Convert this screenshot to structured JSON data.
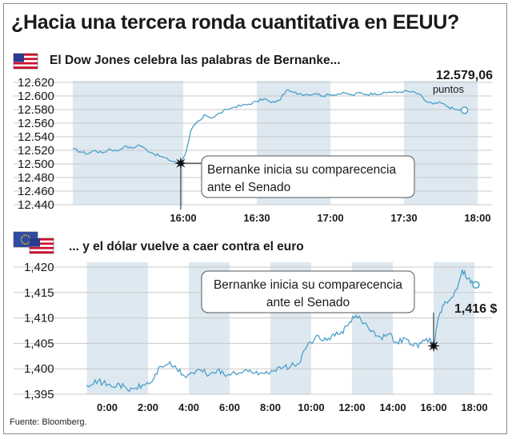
{
  "title": "¿Hacia una tercera ronda cuantitativa en EEUU?",
  "source": "Fuente: Bloomberg.",
  "colors": {
    "line": "#4d9fc9",
    "band": "#dde8f0",
    "grid": "#c9c9c9",
    "text": "#1a1a1a"
  },
  "chart_data": [
    {
      "type": "line",
      "title": "El Dow Jones celebra las palabras de Bernanke...",
      "flag": "us-flag-icon",
      "x_ticks": [
        "16:00",
        "16:30",
        "17:00",
        "17:30",
        "18:00"
      ],
      "y_ticks": [
        "12.620",
        "12.600",
        "12.580",
        "12.560",
        "12.540",
        "12.520",
        "12.500",
        "12.480",
        "12.460",
        "12.440"
      ],
      "ylim": [
        12440,
        12620
      ],
      "x_range": [
        "15:15",
        "18:00"
      ],
      "end_value": "12.579,06",
      "end_unit": "puntos",
      "annotation": {
        "lines": [
          "Bernanke inicia su comparecencia",
          "ante el Senado"
        ],
        "x": "15:59",
        "y": 12501
      },
      "series": [
        {
          "x": [
            15.25,
            15.3,
            15.35,
            15.4,
            15.45,
            15.5,
            15.55,
            15.6,
            15.65,
            15.7,
            15.75,
            15.8,
            15.85,
            15.9,
            15.95,
            15.98,
            16.02,
            16.05,
            16.08,
            16.12,
            16.15,
            16.2,
            16.25,
            16.3,
            16.35,
            16.4,
            16.45,
            16.5,
            16.55,
            16.6,
            16.65,
            16.7,
            16.75,
            16.8,
            16.85,
            16.9,
            16.95,
            17.0,
            17.05,
            17.1,
            17.15,
            17.2,
            17.25,
            17.3,
            17.35,
            17.4,
            17.45,
            17.5,
            17.55,
            17.6,
            17.65,
            17.7,
            17.75,
            17.8,
            17.85,
            17.9
          ],
          "y": [
            12522,
            12518,
            12515,
            12520,
            12516,
            12522,
            12519,
            12526,
            12523,
            12528,
            12521,
            12515,
            12511,
            12506,
            12503,
            12501,
            12518,
            12548,
            12558,
            12565,
            12572,
            12568,
            12575,
            12580,
            12584,
            12586,
            12588,
            12592,
            12596,
            12590,
            12593,
            12608,
            12605,
            12603,
            12602,
            12604,
            12600,
            12602,
            12603,
            12604,
            12601,
            12605,
            12602,
            12604,
            12603,
            12606,
            12605,
            12607,
            12606,
            12603,
            12592,
            12588,
            12590,
            12584,
            12580,
            12579
          ]
        }
      ]
    },
    {
      "type": "line",
      "title": "... y el dólar vuelve a caer contra el euro",
      "flag": "eu-us-flags-icon",
      "x_ticks": [
        "0:00",
        "2:00",
        "4:00",
        "6:00",
        "8:00",
        "10:00",
        "12:00",
        "14:00",
        "16:00",
        "18:00"
      ],
      "y_ticks": [
        "1,420",
        "1,415",
        "1,410",
        "1,405",
        "1,400",
        "1,395"
      ],
      "ylim": [
        1.395,
        1.42
      ],
      "x_range": [
        "23:00",
        "18:00"
      ],
      "end_value": "1,416 $",
      "annotation": {
        "lines": [
          "Bernanke inicia su comparecencia",
          "ante el Senado"
        ],
        "x": "16:00",
        "y": 1.4045
      },
      "series": [
        {
          "x": [
            -1.0,
            -0.6,
            -0.2,
            0.2,
            0.6,
            1.0,
            1.4,
            1.8,
            2.2,
            2.6,
            3.0,
            3.4,
            3.8,
            4.2,
            4.6,
            5.0,
            5.4,
            5.8,
            6.2,
            6.6,
            7.0,
            7.4,
            7.8,
            8.2,
            8.6,
            9.0,
            9.4,
            9.8,
            10.2,
            10.6,
            11.0,
            11.4,
            11.8,
            12.2,
            12.6,
            13.0,
            13.4,
            13.8,
            14.2,
            14.6,
            15.0,
            15.4,
            15.8,
            16.0,
            16.2,
            16.5,
            16.8,
            17.1,
            17.4,
            17.7,
            18.0
          ],
          "y": [
            1.3968,
            1.3978,
            1.3972,
            1.3965,
            1.397,
            1.3958,
            1.3962,
            1.3968,
            1.3975,
            1.4005,
            1.401,
            1.4,
            1.3985,
            1.3992,
            1.3997,
            1.3988,
            1.3998,
            1.3985,
            1.3995,
            1.3992,
            1.3998,
            1.3988,
            1.3995,
            1.3997,
            1.4002,
            1.4005,
            1.401,
            1.4045,
            1.4062,
            1.4055,
            1.4065,
            1.4068,
            1.4085,
            1.4105,
            1.409,
            1.4075,
            1.4062,
            1.4068,
            1.4052,
            1.406,
            1.4045,
            1.405,
            1.406,
            1.4045,
            1.4095,
            1.4125,
            1.4135,
            1.4155,
            1.4195,
            1.4178,
            1.4165
          ]
        }
      ]
    }
  ]
}
